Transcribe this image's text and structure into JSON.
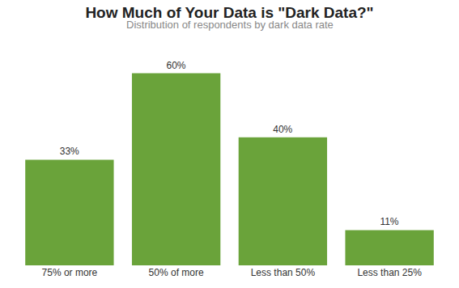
{
  "chart_data": {
    "type": "bar",
    "title": "How Much of Your Data is \"Dark Data?\"",
    "subtitle": "Distribution of respondents by dark data rate",
    "categories": [
      "75% or more",
      "50% of more",
      "Less than 50%",
      "Less than 25%"
    ],
    "values": [
      33,
      60,
      40,
      11
    ],
    "value_labels": [
      "33%",
      "60%",
      "40%",
      "11%"
    ],
    "color": "#6aa33a",
    "data_labels": true,
    "tick_labels": "x",
    "grid": false
  }
}
